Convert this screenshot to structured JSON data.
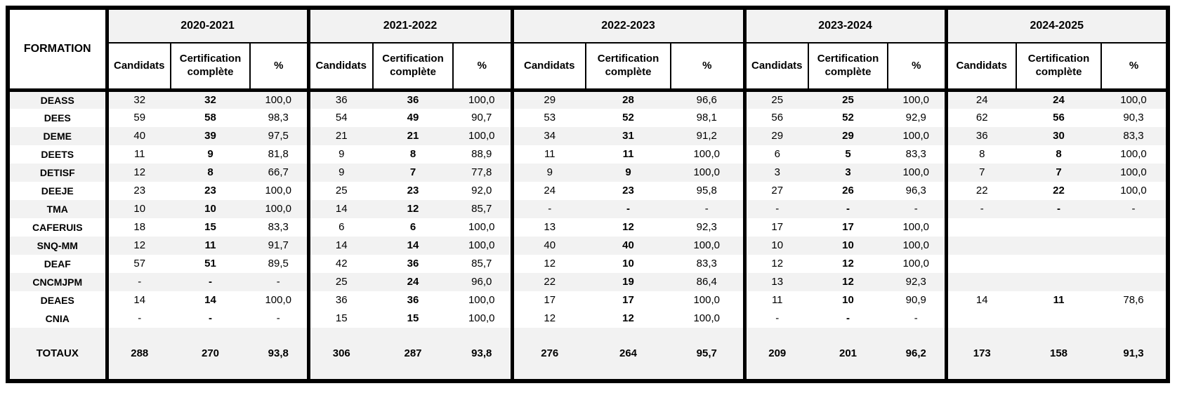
{
  "colors": {
    "stripe_gray": "#f2f2f2",
    "row_white": "#ffffff",
    "border_black": "#000000",
    "text": "#000000"
  },
  "table": {
    "formation_header": "FORMATION",
    "years": [
      "2020-2021",
      "2021-2022",
      "2022-2023",
      "2023-2024",
      "2024-2025"
    ],
    "sub_headers": [
      "Candidats",
      "Certification complète",
      "%"
    ],
    "rows": [
      {
        "formation": "DEASS",
        "shade": "gray",
        "cells": [
          [
            "32",
            "32",
            "100,0"
          ],
          [
            "36",
            "36",
            "100,0"
          ],
          [
            "29",
            "28",
            "96,6"
          ],
          [
            "25",
            "25",
            "100,0"
          ],
          [
            "24",
            "24",
            "100,0"
          ]
        ]
      },
      {
        "formation": "DEES",
        "shade": "white",
        "cells": [
          [
            "59",
            "58",
            "98,3"
          ],
          [
            "54",
            "49",
            "90,7"
          ],
          [
            "53",
            "52",
            "98,1"
          ],
          [
            "56",
            "52",
            "92,9"
          ],
          [
            "62",
            "56",
            "90,3"
          ]
        ]
      },
      {
        "formation": "DEME",
        "shade": "gray",
        "cells": [
          [
            "40",
            "39",
            "97,5"
          ],
          [
            "21",
            "21",
            "100,0"
          ],
          [
            "34",
            "31",
            "91,2"
          ],
          [
            "29",
            "29",
            "100,0"
          ],
          [
            "36",
            "30",
            "83,3"
          ]
        ]
      },
      {
        "formation": "DEETS",
        "shade": "white",
        "cells": [
          [
            "11",
            "9",
            "81,8"
          ],
          [
            "9",
            "8",
            "88,9"
          ],
          [
            "11",
            "11",
            "100,0"
          ],
          [
            "6",
            "5",
            "83,3"
          ],
          [
            "8",
            "8",
            "100,0"
          ]
        ]
      },
      {
        "formation": "DETISF",
        "shade": "gray",
        "cells": [
          [
            "12",
            "8",
            "66,7"
          ],
          [
            "9",
            "7",
            "77,8"
          ],
          [
            "9",
            "9",
            "100,0"
          ],
          [
            "3",
            "3",
            "100,0"
          ],
          [
            "7",
            "7",
            "100,0"
          ]
        ]
      },
      {
        "formation": "DEEJE",
        "shade": "white",
        "cells": [
          [
            "23",
            "23",
            "100,0"
          ],
          [
            "25",
            "23",
            "92,0"
          ],
          [
            "24",
            "23",
            "95,8"
          ],
          [
            "27",
            "26",
            "96,3"
          ],
          [
            "22",
            "22",
            "100,0"
          ]
        ]
      },
      {
        "formation": "TMA",
        "shade": "gray",
        "cells": [
          [
            "10",
            "10",
            "100,0"
          ],
          [
            "14",
            "12",
            "85,7"
          ],
          [
            "-",
            "-",
            "-"
          ],
          [
            "-",
            "-",
            "-"
          ],
          [
            "-",
            "-",
            "-"
          ]
        ]
      },
      {
        "formation": "CAFERUIS",
        "shade": "white",
        "cells": [
          [
            "18",
            "15",
            "83,3"
          ],
          [
            "6",
            "6",
            "100,0"
          ],
          [
            "13",
            "12",
            "92,3"
          ],
          [
            "17",
            "17",
            "100,0"
          ],
          [
            "",
            "",
            ""
          ]
        ]
      },
      {
        "formation": "SNQ-MM",
        "shade": "gray",
        "cells": [
          [
            "12",
            "11",
            "91,7"
          ],
          [
            "14",
            "14",
            "100,0"
          ],
          [
            "40",
            "40",
            "100,0"
          ],
          [
            "10",
            "10",
            "100,0"
          ],
          [
            "",
            "",
            ""
          ]
        ]
      },
      {
        "formation": "DEAF",
        "shade": "white",
        "cells": [
          [
            "57",
            "51",
            "89,5"
          ],
          [
            "42",
            "36",
            "85,7"
          ],
          [
            "12",
            "10",
            "83,3"
          ],
          [
            "12",
            "12",
            "100,0"
          ],
          [
            "",
            "",
            ""
          ]
        ]
      },
      {
        "formation": "CNCMJPM",
        "shade": "gray",
        "cells": [
          [
            "-",
            "-",
            "-"
          ],
          [
            "25",
            "24",
            "96,0"
          ],
          [
            "22",
            "19",
            "86,4"
          ],
          [
            "13",
            "12",
            "92,3"
          ],
          [
            "",
            "",
            ""
          ]
        ]
      },
      {
        "formation": "DEAES",
        "shade": "white",
        "cells": [
          [
            "14",
            "14",
            "100,0"
          ],
          [
            "36",
            "36",
            "100,0"
          ],
          [
            "17",
            "17",
            "100,0"
          ],
          [
            "11",
            "10",
            "90,9"
          ],
          [
            "14",
            "11",
            "78,6"
          ]
        ]
      },
      {
        "formation": "CNIA",
        "shade": "white",
        "cells": [
          [
            "-",
            "-",
            "-"
          ],
          [
            "15",
            "15",
            "100,0"
          ],
          [
            "12",
            "12",
            "100,0"
          ],
          [
            "-",
            "-",
            "-"
          ],
          [
            "",
            "",
            ""
          ]
        ]
      }
    ],
    "totals": {
      "label": "TOTAUX",
      "cells": [
        [
          "288",
          "270",
          "93,8"
        ],
        [
          "306",
          "287",
          "93,8"
        ],
        [
          "276",
          "264",
          "95,7"
        ],
        [
          "209",
          "201",
          "96,2"
        ],
        [
          "173",
          "158",
          "91,3"
        ]
      ]
    }
  }
}
